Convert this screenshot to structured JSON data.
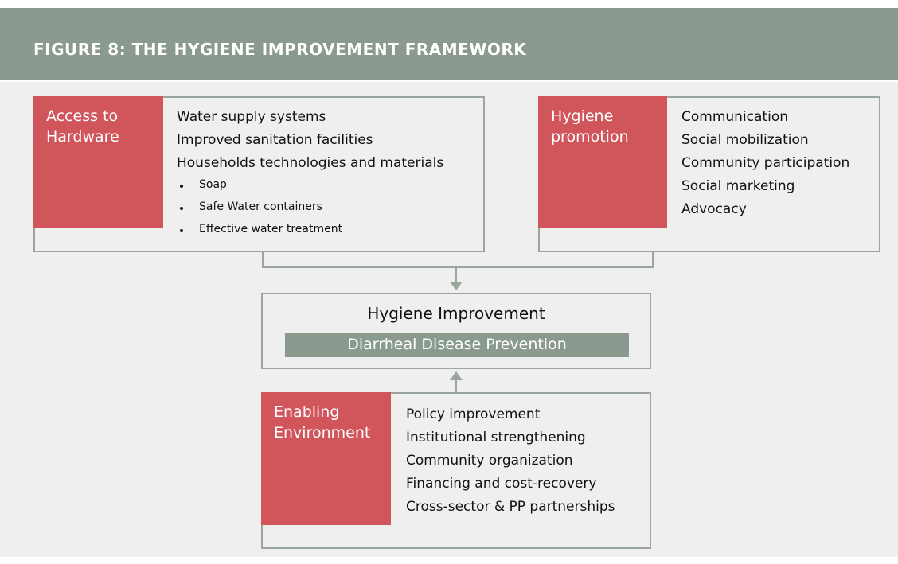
{
  "header": {
    "title": "FIGURE 8: THE HYGIENE IMPROVEMENT FRAMEWORK"
  },
  "hardware": {
    "label": "Access to Hardware",
    "items": [
      "Water supply systems",
      "Improved sanitation facilities",
      "Households technologies and materials"
    ],
    "bullets": [
      "Soap",
      "Safe Water containers",
      "Effective water treatment"
    ]
  },
  "promotion": {
    "label": "Hygiene promotion",
    "items": [
      "Communication",
      "Social mobilization",
      "Community participation",
      "Social marketing",
      "Advocacy"
    ]
  },
  "center": {
    "title": "Hygiene Improvement",
    "subtitle": "Diarrheal Disease Prevention"
  },
  "enabling": {
    "label": "Enabling Environment",
    "items": [
      "Policy improvement",
      "Institutional strengthening",
      "Community organization",
      "Financing and cost-recovery",
      "Cross-sector & PP partnerships"
    ]
  }
}
